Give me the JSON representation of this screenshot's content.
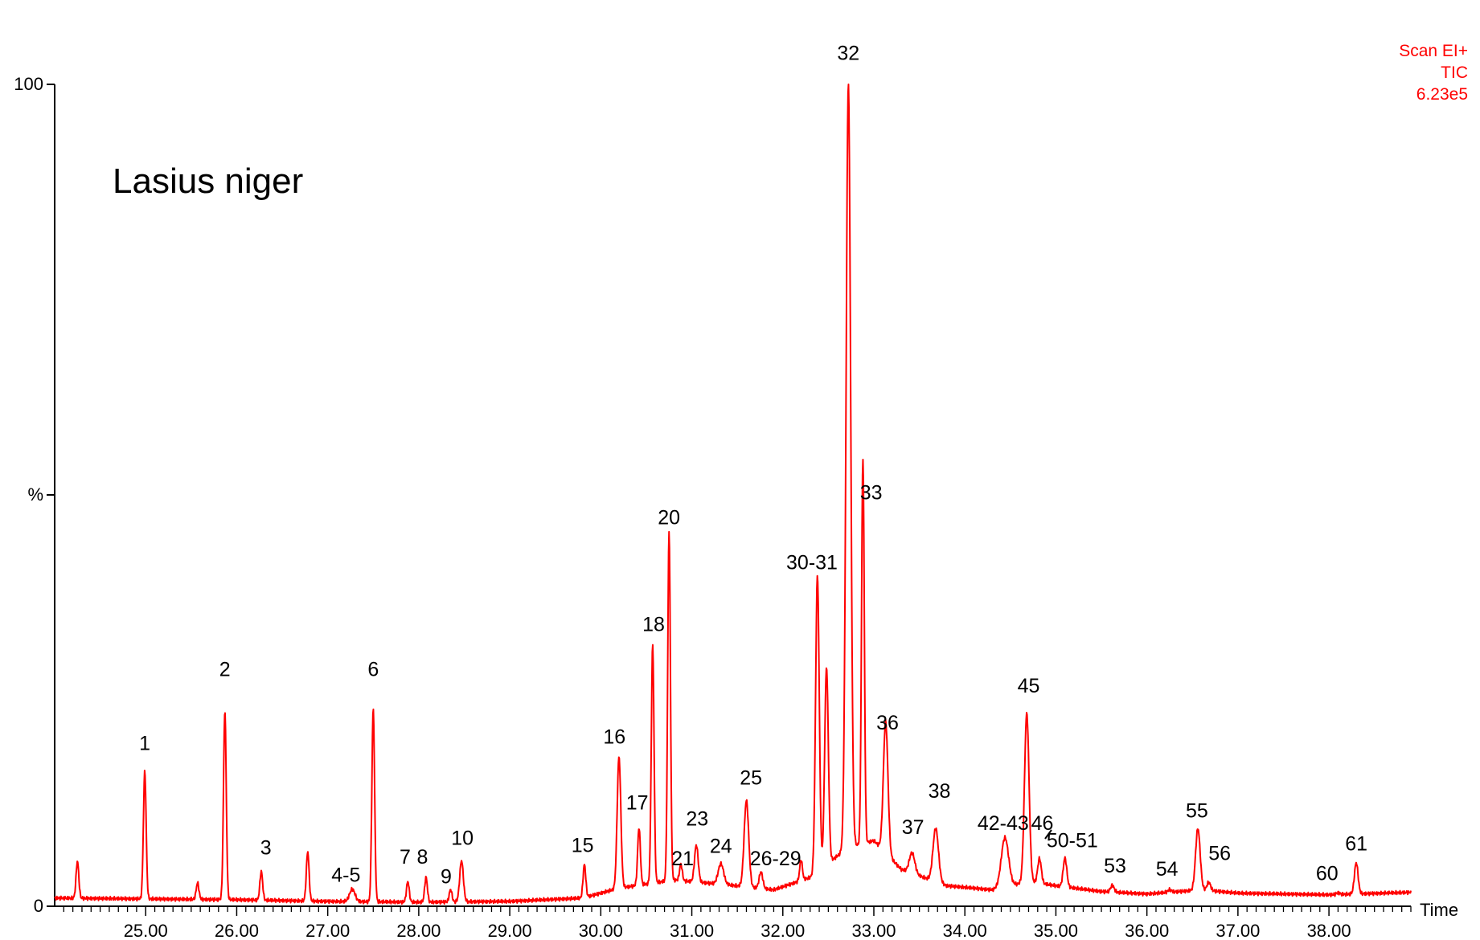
{
  "header": {
    "scan_mode": "Scan EI+",
    "trace": "TIC",
    "intensity": "6.23e5"
  },
  "annotation": {
    "species": "Lasius niger"
  },
  "axes": {
    "y_top_label": "100",
    "y_mid_label": "%",
    "y_bottom_label": "0",
    "x_label": "Time"
  },
  "colors": {
    "trace": "#ff0000",
    "axis": "#000000",
    "background": "#ffffff"
  },
  "chart_data": {
    "type": "line",
    "xlim": [
      24.0,
      38.9
    ],
    "ylim": [
      0,
      100
    ],
    "x_ticks": [
      25.0,
      26.0,
      27.0,
      28.0,
      29.0,
      30.0,
      31.0,
      32.0,
      33.0,
      34.0,
      35.0,
      36.0,
      37.0,
      38.0
    ],
    "x_tick_labels": [
      "25.00",
      "26.00",
      "27.00",
      "28.00",
      "29.00",
      "30.00",
      "31.00",
      "32.00",
      "33.00",
      "34.00",
      "35.00",
      "36.00",
      "37.00",
      "38.00"
    ],
    "baseline": [
      [
        24.0,
        1.0
      ],
      [
        25.0,
        0.9
      ],
      [
        26.0,
        0.8
      ],
      [
        27.0,
        0.6
      ],
      [
        28.0,
        0.5
      ],
      [
        29.0,
        0.6
      ],
      [
        29.8,
        1.0
      ],
      [
        30.2,
        2.2
      ],
      [
        30.8,
        3.2
      ],
      [
        31.4,
        2.6
      ],
      [
        31.9,
        2.0
      ],
      [
        32.3,
        3.5
      ],
      [
        32.7,
        7.0
      ],
      [
        33.0,
        8.0
      ],
      [
        33.3,
        4.5
      ],
      [
        33.8,
        2.5
      ],
      [
        34.3,
        2.0
      ],
      [
        34.7,
        3.0
      ],
      [
        35.0,
        2.5
      ],
      [
        35.5,
        1.8
      ],
      [
        36.0,
        1.5
      ],
      [
        36.6,
        2.0
      ],
      [
        37.0,
        1.6
      ],
      [
        38.0,
        1.4
      ],
      [
        38.9,
        1.7
      ]
    ],
    "peaks": [
      {
        "label": "",
        "rt": 24.25,
        "height": 4.5,
        "width": 0.015
      },
      {
        "label": "1",
        "rt": 24.99,
        "height": 15.5,
        "width": 0.015
      },
      {
        "label": "",
        "rt": 25.57,
        "height": 2.0,
        "width": 0.015
      },
      {
        "label": "2",
        "rt": 25.87,
        "height": 23.0,
        "width": 0.015
      },
      {
        "label": "3",
        "rt": 26.27,
        "height": 3.5,
        "width": 0.015
      },
      {
        "label": "",
        "rt": 26.78,
        "height": 6.0,
        "width": 0.015
      },
      {
        "label": "4-5",
        "rt": 27.27,
        "height": 1.5,
        "width": 0.03
      },
      {
        "label": "6",
        "rt": 27.5,
        "height": 23.5,
        "width": 0.015
      },
      {
        "label": "7",
        "rt": 27.88,
        "height": 2.5,
        "width": 0.015
      },
      {
        "label": "8",
        "rt": 28.08,
        "height": 3.0,
        "width": 0.015
      },
      {
        "label": "9",
        "rt": 28.35,
        "height": 1.5,
        "width": 0.015
      },
      {
        "label": "10",
        "rt": 28.47,
        "height": 5.0,
        "width": 0.02
      },
      {
        "label": "15",
        "rt": 29.82,
        "height": 4.0,
        "width": 0.015
      },
      {
        "label": "16",
        "rt": 30.2,
        "height": 16.0,
        "width": 0.02
      },
      {
        "label": "17",
        "rt": 30.42,
        "height": 7.0,
        "width": 0.015
      },
      {
        "label": "18",
        "rt": 30.57,
        "height": 29.0,
        "width": 0.015
      },
      {
        "label": "20",
        "rt": 30.75,
        "height": 42.5,
        "width": 0.015
      },
      {
        "label": "21",
        "rt": 30.88,
        "height": 2.0,
        "width": 0.015
      },
      {
        "label": "23",
        "rt": 31.05,
        "height": 4.5,
        "width": 0.02
      },
      {
        "label": "24",
        "rt": 31.32,
        "height": 2.5,
        "width": 0.03
      },
      {
        "label": "25",
        "rt": 31.6,
        "height": 10.5,
        "width": 0.025
      },
      {
        "label": "26-29",
        "rt": 31.76,
        "height": 2.0,
        "width": 0.02
      },
      {
        "label": "",
        "rt": 32.2,
        "height": 2.5,
        "width": 0.015
      },
      {
        "label": "30-31",
        "rt": 32.38,
        "height": 36.0,
        "width": 0.02
      },
      {
        "label": "",
        "rt": 32.48,
        "height": 24.0,
        "width": 0.02
      },
      {
        "label": "32",
        "rt": 32.72,
        "height": 93.0,
        "width": 0.025
      },
      {
        "label": "33",
        "rt": 32.88,
        "height": 47.0,
        "width": 0.015
      },
      {
        "label": "36",
        "rt": 33.13,
        "height": 16.0,
        "width": 0.025
      },
      {
        "label": "37",
        "rt": 33.42,
        "height": 2.5,
        "width": 0.03
      },
      {
        "label": "38",
        "rt": 33.68,
        "height": 6.5,
        "width": 0.03
      },
      {
        "label": "42-43",
        "rt": 34.44,
        "height": 6.0,
        "width": 0.04
      },
      {
        "label": "45",
        "rt": 34.68,
        "height": 20.5,
        "width": 0.025
      },
      {
        "label": "46",
        "rt": 34.82,
        "height": 3.0,
        "width": 0.02
      },
      {
        "label": "50-51",
        "rt": 35.1,
        "height": 3.5,
        "width": 0.02
      },
      {
        "label": "53",
        "rt": 35.62,
        "height": 0.8,
        "width": 0.02
      },
      {
        "label": "54",
        "rt": 36.25,
        "height": 0.3,
        "width": 0.02
      },
      {
        "label": "55",
        "rt": 36.56,
        "height": 7.5,
        "width": 0.025
      },
      {
        "label": "56",
        "rt": 36.68,
        "height": 1.0,
        "width": 0.02
      },
      {
        "label": "60",
        "rt": 38.1,
        "height": 0.2,
        "width": 0.02
      },
      {
        "label": "61",
        "rt": 38.3,
        "height": 3.8,
        "width": 0.02
      }
    ],
    "peak_labels": [
      {
        "text": "1",
        "rt": 24.99,
        "label_y": 19
      },
      {
        "text": "2",
        "rt": 25.87,
        "label_y": 28
      },
      {
        "text": "3",
        "rt": 26.32,
        "label_y": 6.3
      },
      {
        "text": "4-5",
        "rt": 27.2,
        "label_y": 3
      },
      {
        "text": "6",
        "rt": 27.5,
        "label_y": 28
      },
      {
        "text": "7",
        "rt": 27.85,
        "label_y": 5.2
      },
      {
        "text": "8",
        "rt": 28.04,
        "label_y": 5.2
      },
      {
        "text": "9",
        "rt": 28.3,
        "label_y": 2.8
      },
      {
        "text": "10",
        "rt": 28.48,
        "label_y": 7.5
      },
      {
        "text": "15",
        "rt": 29.8,
        "label_y": 6.6
      },
      {
        "text": "16",
        "rt": 30.15,
        "label_y": 19.8
      },
      {
        "text": "17",
        "rt": 30.4,
        "label_y": 11.8
      },
      {
        "text": "18",
        "rt": 30.58,
        "label_y": 33.5
      },
      {
        "text": "20",
        "rt": 30.75,
        "label_y": 46.5
      },
      {
        "text": "21",
        "rt": 30.9,
        "label_y": 5
      },
      {
        "text": "23",
        "rt": 31.06,
        "label_y": 9.8
      },
      {
        "text": "24",
        "rt": 31.32,
        "label_y": 6.5
      },
      {
        "text": "25",
        "rt": 31.65,
        "label_y": 14.8
      },
      {
        "text": "26-29",
        "rt": 31.92,
        "label_y": 5
      },
      {
        "text": "30-31",
        "rt": 32.32,
        "label_y": 41
      },
      {
        "text": "32",
        "rt": 32.72,
        "label_y": 103
      },
      {
        "text": "33",
        "rt": 32.97,
        "label_y": 49.5
      },
      {
        "text": "36",
        "rt": 33.15,
        "label_y": 21.5
      },
      {
        "text": "37",
        "rt": 33.43,
        "label_y": 8.8
      },
      {
        "text": "38",
        "rt": 33.72,
        "label_y": 13.2
      },
      {
        "text": "42-43",
        "rt": 34.42,
        "label_y": 9.3
      },
      {
        "text": "45",
        "rt": 34.7,
        "label_y": 26
      },
      {
        "text": "46",
        "rt": 34.85,
        "label_y": 9.3
      },
      {
        "text": "50-51",
        "rt": 35.18,
        "label_y": 7.2
      },
      {
        "text": "53",
        "rt": 35.65,
        "label_y": 4.1
      },
      {
        "text": "54",
        "rt": 36.22,
        "label_y": 3.7
      },
      {
        "text": "55",
        "rt": 36.55,
        "label_y": 10.8
      },
      {
        "text": "56",
        "rt": 36.8,
        "label_y": 5.6
      },
      {
        "text": "60",
        "rt": 37.98,
        "label_y": 3.2
      },
      {
        "text": "61",
        "rt": 38.3,
        "label_y": 6.8
      }
    ]
  }
}
